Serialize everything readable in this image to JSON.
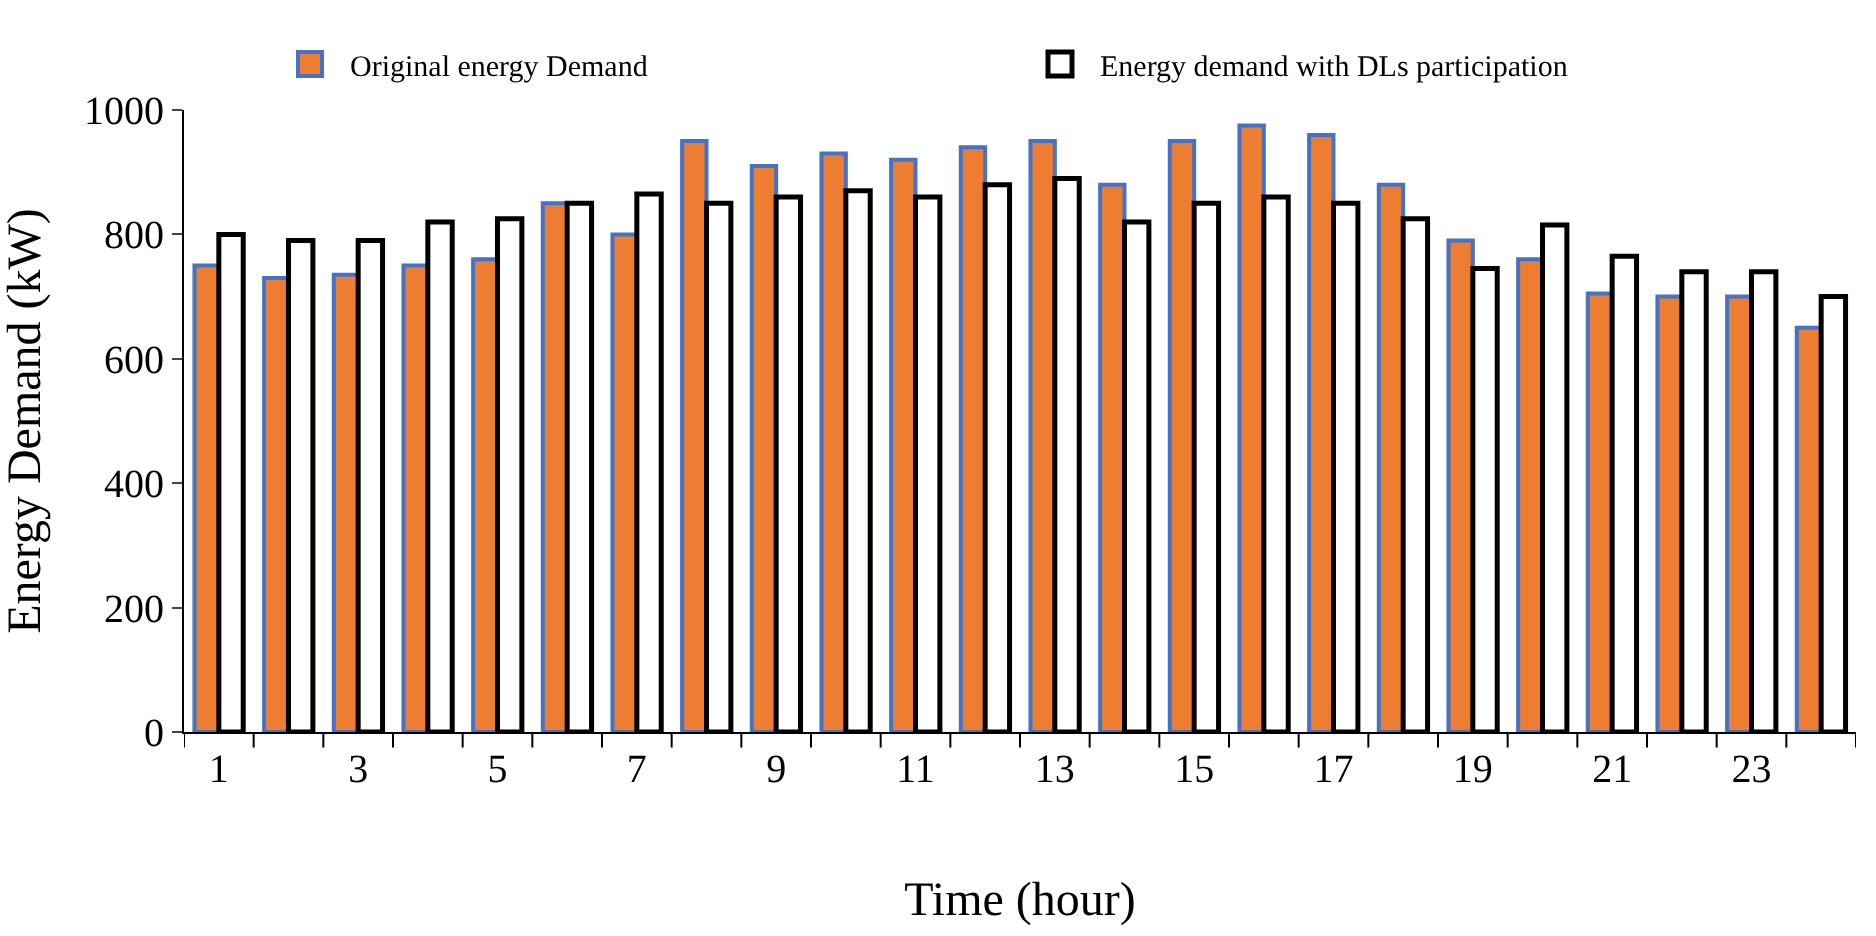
{
  "chart_data": {
    "type": "bar",
    "xlabel": "Time (hour)",
    "ylabel": "Energy Demand (kW)",
    "x": [
      1,
      2,
      3,
      4,
      5,
      6,
      7,
      8,
      9,
      10,
      11,
      12,
      13,
      14,
      15,
      16,
      17,
      18,
      19,
      20,
      21,
      22,
      23,
      24
    ],
    "series": [
      {
        "name": "Original energy Demand",
        "color": "#ed7d31",
        "values": [
          750,
          730,
          735,
          750,
          760,
          850,
          800,
          950,
          910,
          930,
          920,
          940,
          950,
          880,
          950,
          975,
          960,
          880,
          790,
          760,
          705,
          700,
          700,
          650
        ]
      },
      {
        "name": "Energy demand with DLs participation",
        "color": "#ffffff",
        "values": [
          800,
          790,
          790,
          820,
          825,
          850,
          865,
          850,
          860,
          870,
          860,
          880,
          890,
          820,
          850,
          860,
          850,
          825,
          745,
          815,
          765,
          740,
          740,
          700
        ]
      }
    ],
    "xlim": [
      0.5,
      24.5
    ],
    "xticks": [
      1,
      3,
      5,
      7,
      9,
      11,
      13,
      15,
      17,
      19,
      21,
      23
    ],
    "ylim": [
      0,
      1000
    ],
    "yticks": [
      0,
      200,
      400,
      600,
      800,
      1000
    ],
    "legend": "top"
  }
}
